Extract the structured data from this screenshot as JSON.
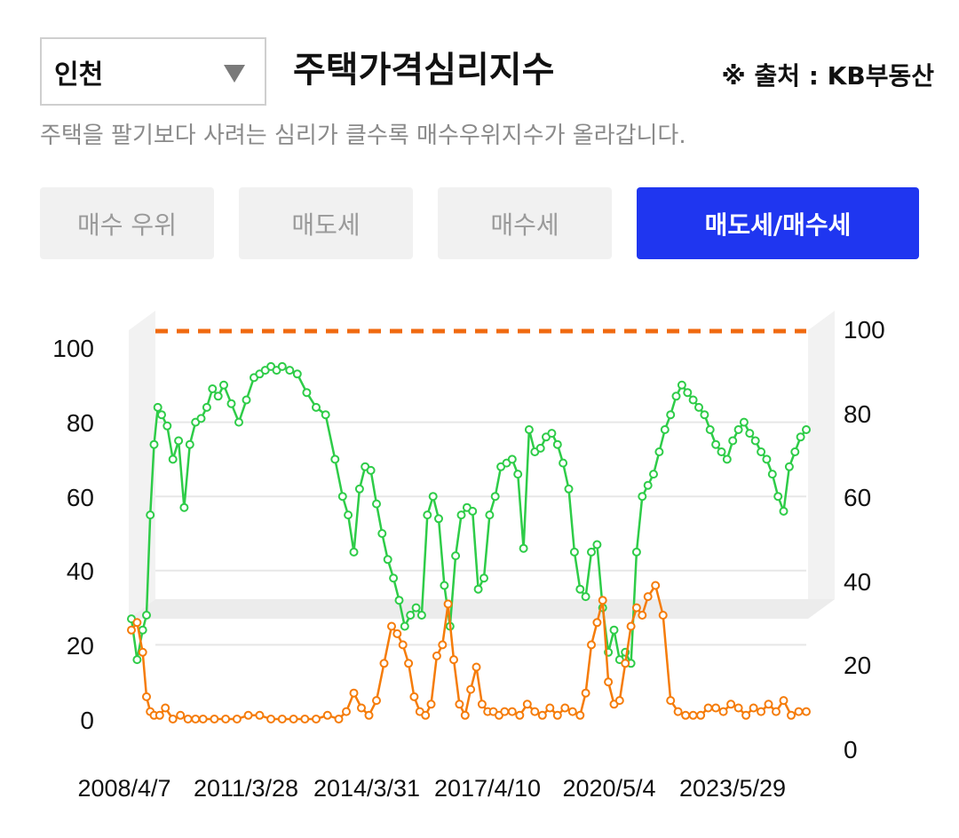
{
  "header": {
    "region": "인천",
    "title": "주택가격심리지수",
    "source": "※ 출처 : KB부동산",
    "description": "주택을 팔기보다 사려는 심리가 클수록 매수우위지수가 올라갑니다."
  },
  "tabs": [
    {
      "label": "매수 우위",
      "active": false
    },
    {
      "label": "매도세",
      "active": false
    },
    {
      "label": "매수세",
      "active": false
    },
    {
      "label": "매도세/매수세",
      "active": true
    }
  ],
  "colors": {
    "seller_line": "#2ecc48",
    "buyer_line": "#f57c0a",
    "reference_line": "#f06a10",
    "active_tab": "#1f36f0"
  },
  "chart_data": {
    "type": "line",
    "x_tick_labels": [
      "2008/4/7",
      "2011/3/28",
      "2014/3/31",
      "2017/4/10",
      "2020/5/4",
      "2023/5/29"
    ],
    "x_range": [
      2007.6,
      2025.5
    ],
    "y_left": {
      "ticks": [
        "100",
        "80",
        "60",
        "40",
        "20",
        "0"
      ],
      "range": [
        0,
        100
      ]
    },
    "y_right": {
      "ticks": [
        "100",
        "80",
        "60",
        "40",
        "20",
        "0"
      ],
      "range": [
        0,
        100
      ]
    },
    "reference_line": {
      "value": 100,
      "style": "dashed"
    },
    "grid": true,
    "series": [
      {
        "color": "seller",
        "x": [
          2007.6,
          2007.75,
          2007.9,
          2008.0,
          2008.1,
          2008.2,
          2008.3,
          2008.4,
          2008.55,
          2008.7,
          2008.85,
          2009.0,
          2009.15,
          2009.3,
          2009.45,
          2009.6,
          2009.75,
          2009.9,
          2010.05,
          2010.25,
          2010.45,
          2010.65,
          2010.85,
          2011.0,
          2011.15,
          2011.3,
          2011.45,
          2011.6,
          2011.8,
          2012.0,
          2012.25,
          2012.5,
          2012.75,
          2013.0,
          2013.2,
          2013.35,
          2013.5,
          2013.65,
          2013.8,
          2013.95,
          2014.1,
          2014.25,
          2014.4,
          2014.55,
          2014.7,
          2014.85,
          2015.0,
          2015.15,
          2015.3,
          2015.45,
          2015.6,
          2015.75,
          2015.9,
          2016.05,
          2016.2,
          2016.35,
          2016.5,
          2016.65,
          2016.8,
          2016.95,
          2017.1,
          2017.25,
          2017.4,
          2017.55,
          2017.7,
          2017.85,
          2018.0,
          2018.15,
          2018.3,
          2018.45,
          2018.6,
          2018.75,
          2018.9,
          2019.05,
          2019.2,
          2019.35,
          2019.5,
          2019.65,
          2019.8,
          2019.95,
          2020.1,
          2020.25,
          2020.4,
          2020.55,
          2020.7,
          2020.85,
          2021.0,
          2021.15,
          2021.3,
          2021.45,
          2021.6,
          2021.75,
          2021.9,
          2022.05,
          2022.2,
          2022.35,
          2022.5,
          2022.65,
          2022.8,
          2022.95,
          2023.1,
          2023.25,
          2023.4,
          2023.55,
          2023.7,
          2023.85,
          2024.0,
          2024.15,
          2024.3,
          2024.45,
          2024.6,
          2024.75,
          2024.9,
          2025.05,
          2025.2,
          2025.35,
          2025.5
        ],
        "values": [
          27,
          16,
          24,
          28,
          55,
          74,
          84,
          82,
          79,
          70,
          75,
          57,
          74,
          80,
          81,
          84,
          89,
          87,
          90,
          85,
          80,
          86,
          92,
          93,
          94,
          95,
          94,
          95,
          94,
          93,
          88,
          84,
          82,
          70,
          60,
          55,
          45,
          62,
          68,
          67,
          58,
          50,
          43,
          38,
          32,
          25,
          28,
          30,
          28,
          55,
          60,
          54,
          36,
          25,
          44,
          55,
          57,
          56,
          35,
          38,
          55,
          60,
          68,
          69,
          70,
          66,
          46,
          78,
          72,
          73,
          76,
          77,
          74,
          69,
          62,
          45,
          35,
          33,
          45,
          47,
          30,
          18,
          24,
          16,
          18,
          15,
          45,
          60,
          63,
          66,
          72,
          78,
          82,
          87,
          90,
          88,
          86,
          84,
          82,
          78,
          74,
          72,
          70,
          75,
          78,
          80,
          77,
          75,
          72,
          70,
          66,
          60,
          56,
          68,
          72,
          76,
          78
        ]
      },
      {
        "color": "buyer",
        "x": [
          2007.6,
          2007.75,
          2007.9,
          2008.0,
          2008.1,
          2008.2,
          2008.35,
          2008.5,
          2008.7,
          2008.9,
          2009.1,
          2009.3,
          2009.5,
          2009.8,
          2010.1,
          2010.4,
          2010.7,
          2011.0,
          2011.3,
          2011.6,
          2011.9,
          2012.2,
          2012.5,
          2012.8,
          2013.1,
          2013.3,
          2013.5,
          2013.7,
          2013.9,
          2014.1,
          2014.3,
          2014.5,
          2014.65,
          2014.8,
          2014.95,
          2015.1,
          2015.25,
          2015.4,
          2015.55,
          2015.7,
          2015.85,
          2016.0,
          2016.15,
          2016.3,
          2016.45,
          2016.6,
          2016.75,
          2016.9,
          2017.05,
          2017.2,
          2017.35,
          2017.5,
          2017.7,
          2017.9,
          2018.1,
          2018.3,
          2018.5,
          2018.7,
          2018.9,
          2019.1,
          2019.3,
          2019.5,
          2019.65,
          2019.8,
          2019.95,
          2020.1,
          2020.25,
          2020.4,
          2020.55,
          2020.7,
          2020.85,
          2021.0,
          2021.15,
          2021.3,
          2021.5,
          2021.7,
          2021.9,
          2022.1,
          2022.3,
          2022.5,
          2022.7,
          2022.9,
          2023.1,
          2023.3,
          2023.5,
          2023.7,
          2023.9,
          2024.1,
          2024.3,
          2024.5,
          2024.7,
          2024.9,
          2025.1,
          2025.3,
          2025.5
        ],
        "values": [
          24,
          26,
          18,
          6,
          2,
          1,
          1,
          3,
          0,
          1,
          0,
          0,
          0,
          0,
          0,
          0,
          1,
          1,
          0,
          0,
          0,
          0,
          0,
          1,
          0,
          2,
          7,
          3,
          1,
          5,
          15,
          25,
          23,
          20,
          15,
          6,
          2,
          1,
          4,
          17,
          20,
          31,
          16,
          4,
          1,
          8,
          14,
          4,
          2,
          2,
          1,
          2,
          2,
          1,
          4,
          2,
          1,
          3,
          1,
          3,
          2,
          1,
          7,
          20,
          26,
          32,
          10,
          4,
          5,
          15,
          25,
          30,
          28,
          33,
          36,
          28,
          5,
          2,
          1,
          1,
          1,
          3,
          3,
          2,
          4,
          3,
          1,
          3,
          2,
          4,
          2,
          5,
          1,
          2,
          2
        ]
      }
    ]
  }
}
